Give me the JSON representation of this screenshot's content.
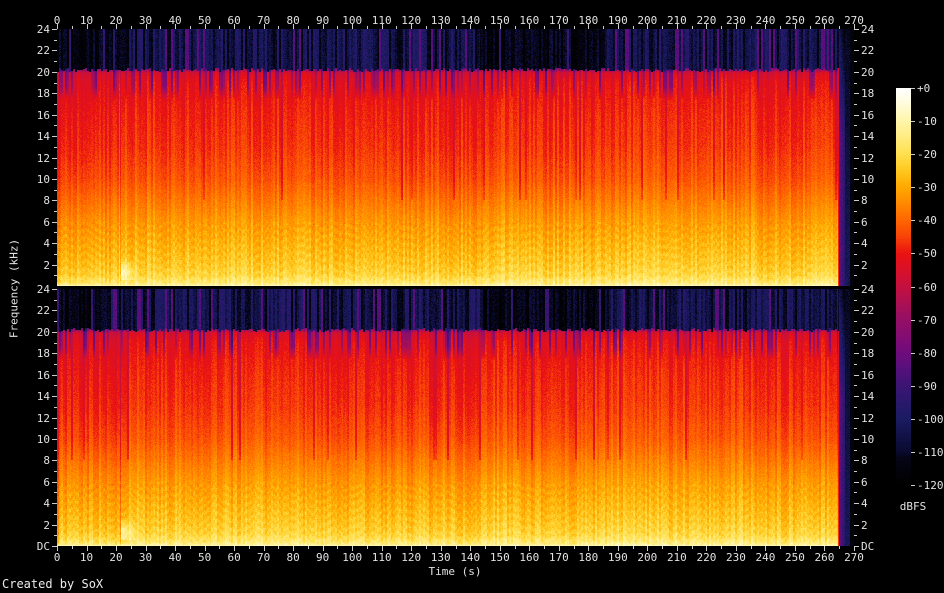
{
  "credit": "Created by SoX",
  "axes": {
    "time": {
      "label": "Time (s)",
      "min_s": 0,
      "max_s": 270,
      "major_tick_step_s": 10,
      "minor_tick_step_s": 5,
      "ticks": [
        0,
        10,
        20,
        30,
        40,
        50,
        60,
        70,
        80,
        90,
        100,
        110,
        120,
        130,
        140,
        150,
        160,
        170,
        180,
        190,
        200,
        210,
        220,
        230,
        240,
        250,
        260,
        270
      ]
    },
    "frequency": {
      "label": "Frequency (kHz)",
      "min_khz": 0,
      "max_khz": 24,
      "major_tick_step_khz": 2,
      "minor_tick_step_khz": 1,
      "upper_channel_tick_labels": [
        "24",
        "22",
        "20",
        "18",
        "16",
        "14",
        "12",
        "10",
        "8",
        "6",
        "4",
        "2"
      ],
      "lower_channel_tick_labels": [
        "24",
        "22",
        "20",
        "18",
        "16",
        "14",
        "12",
        "10",
        "8",
        "6",
        "4",
        "2",
        "DC"
      ]
    },
    "colorbar": {
      "label": "dBFS",
      "min_db": -120,
      "max_db": 0,
      "tick_step_db": 10,
      "ticks": [
        "+0",
        "-10",
        "-20",
        "-30",
        "-40",
        "-50",
        "-60",
        "-70",
        "-80",
        "-90",
        "-100",
        "-110",
        "-120"
      ]
    }
  },
  "chart_data": {
    "type": "heatmap",
    "subtype": "audio-spectrogram",
    "tool": "SoX spectrogram",
    "channels": 2,
    "duration_s": 270,
    "audio_end_s": 264.3,
    "freq_range_khz": [
      0,
      24
    ],
    "lowpass_cutoff_khz": 20.1,
    "dbfs_range": [
      -120,
      0
    ],
    "freq_profile_db": [
      [
        0,
        -10
      ],
      [
        0.3,
        -16
      ],
      [
        1,
        -22
      ],
      [
        2,
        -25
      ],
      [
        4,
        -29
      ],
      [
        6,
        -33
      ],
      [
        8,
        -38
      ],
      [
        10,
        -43
      ],
      [
        13,
        -47
      ],
      [
        16,
        -49
      ],
      [
        19,
        -52
      ],
      [
        19.9,
        -56
      ],
      [
        20.3,
        -76
      ],
      [
        20.6,
        -100
      ],
      [
        21,
        -104
      ],
      [
        24,
        -106
      ]
    ],
    "sections_s": [
      [
        0,
        21,
        -1.5
      ],
      [
        21,
        84,
        1
      ],
      [
        84,
        143,
        0
      ],
      [
        143,
        148,
        0.5
      ],
      [
        148,
        158,
        2
      ],
      [
        158,
        187,
        0.5
      ],
      [
        187,
        236,
        1.5
      ],
      [
        236,
        264.3,
        0.5
      ]
    ],
    "dark_hf_segments_s": [
      [
        0,
        18
      ],
      [
        143,
        186
      ]
    ],
    "events": [
      {
        "time_s": 21.4,
        "type": "transient",
        "description": "percussive hit followed by bright 1-2 kHz riser"
      },
      {
        "time_s": 264.3,
        "type": "end",
        "description": "program ends: broadband click then quiet noise tail to 270 s"
      }
    ],
    "palette": [
      [
        -120,
        "#000000"
      ],
      [
        -112,
        "#050516"
      ],
      [
        -110,
        "#0a0a30"
      ],
      [
        -100,
        "#1b1b62"
      ],
      [
        -95,
        "#2a186c"
      ],
      [
        -90,
        "#3c1472"
      ],
      [
        -85,
        "#55107c"
      ],
      [
        -80,
        "#6f0c7c"
      ],
      [
        -75,
        "#830d72"
      ],
      [
        -70,
        "#950f65"
      ],
      [
        -65,
        "#ab1053"
      ],
      [
        -60,
        "#c41040"
      ],
      [
        -55,
        "#d81028"
      ],
      [
        -50,
        "#ea1212"
      ],
      [
        -45,
        "#f84208"
      ],
      [
        -40,
        "#ff6600"
      ],
      [
        -35,
        "#ff8800"
      ],
      [
        -30,
        "#ffa800"
      ],
      [
        -25,
        "#ffc71e"
      ],
      [
        -20,
        "#ffdf4d"
      ],
      [
        -15,
        "#ffeb7e"
      ],
      [
        -10,
        "#fff5a8"
      ],
      [
        -5,
        "#fffbd8"
      ],
      [
        0,
        "#ffffff"
      ]
    ]
  }
}
